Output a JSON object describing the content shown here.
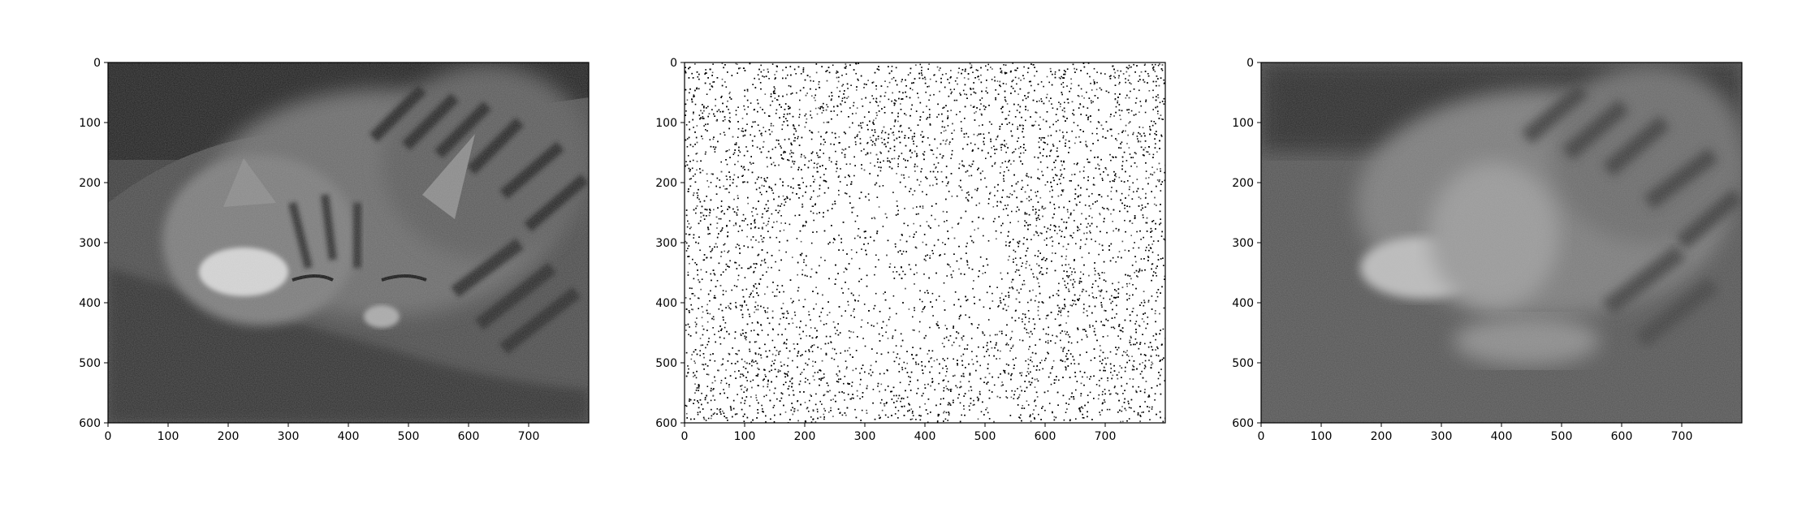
{
  "figure": {
    "panels": [
      {
        "id": "original",
        "content": "grayscale photograph of a sleeping tabby cat on a cushion"
      },
      {
        "id": "noisy",
        "content": "same image as sparse random black speckle noise on white"
      },
      {
        "id": "denoised",
        "content": "blurry, noisy reconstruction of the cat image"
      }
    ]
  },
  "chart_data": [
    {
      "type": "heatmap",
      "x_ticks": [
        0,
        100,
        200,
        300,
        400,
        500,
        600,
        700
      ],
      "y_ticks": [
        0,
        100,
        200,
        300,
        400,
        500,
        600
      ],
      "xlim": [
        0,
        800
      ],
      "ylim": [
        600,
        0
      ],
      "colormap": "gray"
    },
    {
      "type": "heatmap",
      "x_ticks": [
        0,
        100,
        200,
        300,
        400,
        500,
        600,
        700
      ],
      "y_ticks": [
        0,
        100,
        200,
        300,
        400,
        500,
        600
      ],
      "xlim": [
        0,
        800
      ],
      "ylim": [
        600,
        0
      ],
      "colormap": "gray"
    },
    {
      "type": "heatmap",
      "x_ticks": [
        0,
        100,
        200,
        300,
        400,
        500,
        600,
        700
      ],
      "y_ticks": [
        0,
        100,
        200,
        300,
        400,
        500,
        600
      ],
      "xlim": [
        0,
        800
      ],
      "ylim": [
        600,
        0
      ],
      "colormap": "gray"
    }
  ]
}
